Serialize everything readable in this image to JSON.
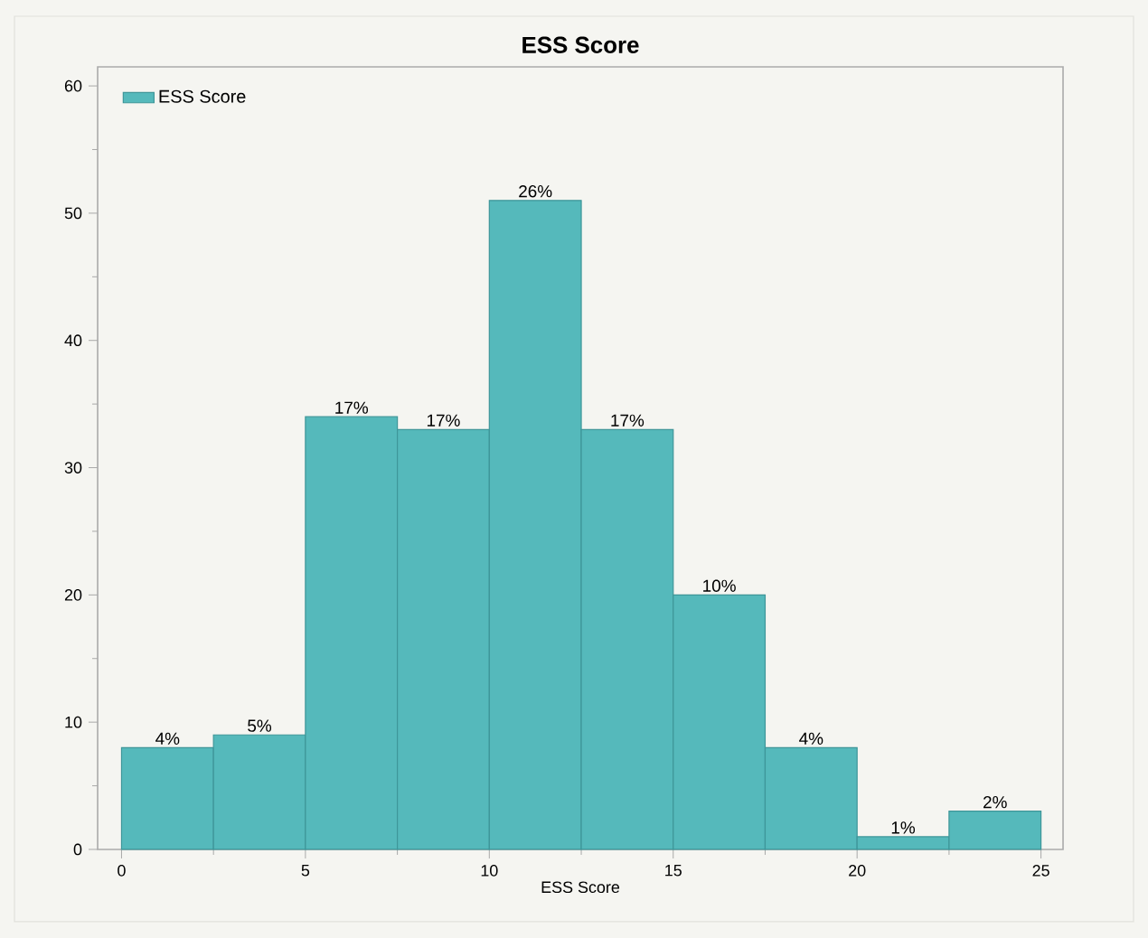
{
  "chart_data": {
    "type": "histogram",
    "title": "ESS Score",
    "xlabel": "ESS Score",
    "bins": [
      0,
      2.5,
      5,
      7.5,
      10,
      12.5,
      15,
      17.5,
      20,
      22.5,
      25
    ],
    "series": [
      {
        "name": "ESS Score",
        "color": "#55b9bb",
        "values": [
          8,
          9,
          34,
          33,
          51,
          33,
          20,
          8,
          1,
          3
        ]
      }
    ],
    "value_labels": [
      "4%",
      "5%",
      "17%",
      "17%",
      "26%",
      "17%",
      "10%",
      "4%",
      "1%",
      "2%"
    ],
    "xlim": [
      -0.65,
      25.6
    ],
    "ylim": [
      0,
      61.5
    ],
    "xticks": [
      0,
      {
        "value": 2.5,
        "label": null
      },
      5,
      {
        "value": 7.5,
        "label": null
      },
      10,
      {
        "value": 12.5,
        "label": null
      },
      15,
      {
        "value": 17.5,
        "label": null
      },
      20,
      {
        "value": 22.5,
        "label": null
      },
      25
    ],
    "yticks": [
      0,
      {
        "value": 5,
        "label": null
      },
      10,
      {
        "value": 15,
        "label": null
      },
      20,
      {
        "value": 25,
        "label": null
      },
      30,
      {
        "value": 35,
        "label": null
      },
      40,
      {
        "value": 45,
        "label": null
      },
      50,
      {
        "value": 55,
        "label": null
      },
      60
    ],
    "legend": "top left"
  }
}
